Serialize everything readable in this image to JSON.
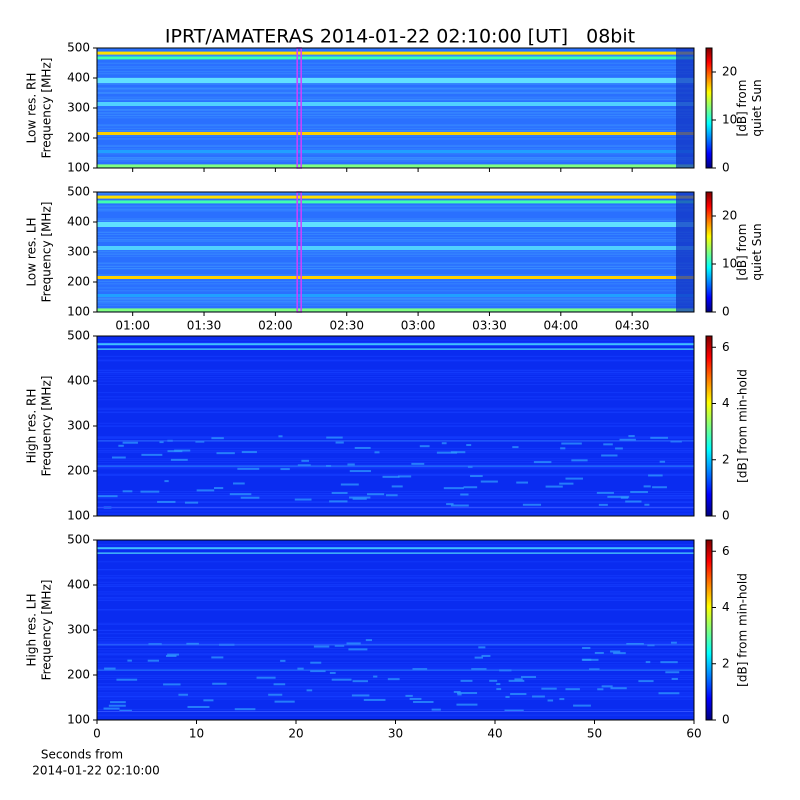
{
  "title": "IPRT/AMATERAS 2014-01-22 02:10:00 [UT]   08bit",
  "chart_data": [
    {
      "type": "spectrogram",
      "ylabel": [
        "Low res. RH",
        "Frequency [MHz]"
      ],
      "ylim": [
        100,
        500
      ],
      "yticks": [
        100,
        200,
        300,
        400,
        500
      ],
      "xlim": [
        "00:45",
        "04:56"
      ],
      "marker": "02:10",
      "colorbar": {
        "label": [
          "[dB] from",
          "quiet Sun"
        ],
        "lim": [
          0,
          25
        ],
        "ticks": [
          0,
          10,
          20
        ]
      }
    },
    {
      "type": "spectrogram",
      "ylabel": [
        "Low res. LH",
        "Frequency [MHz]"
      ],
      "ylim": [
        100,
        500
      ],
      "yticks": [
        100,
        200,
        300,
        400,
        500
      ],
      "xlim": [
        "00:45",
        "04:56"
      ],
      "xticks": [
        "01:00",
        "01:30",
        "02:00",
        "02:30",
        "03:00",
        "03:30",
        "04:00",
        "04:30"
      ],
      "marker": "02:10",
      "colorbar": {
        "label": [
          "[dB] from",
          "quiet Sun"
        ],
        "lim": [
          0,
          25
        ],
        "ticks": [
          0,
          10,
          20
        ]
      }
    },
    {
      "type": "spectrogram",
      "ylabel": [
        "High res. RH",
        "Frequency [MHz]"
      ],
      "ylim": [
        100,
        500
      ],
      "yticks": [
        100,
        200,
        300,
        400,
        500
      ],
      "xlim": [
        0,
        60
      ],
      "colorbar": {
        "label": [
          "[dB] from min-hold"
        ],
        "lim": [
          0,
          6.4
        ],
        "ticks": [
          0,
          2,
          4,
          6
        ]
      }
    },
    {
      "type": "spectrogram",
      "ylabel": [
        "High res. LH",
        "Frequency [MHz]"
      ],
      "ylim": [
        100,
        500
      ],
      "yticks": [
        100,
        200,
        300,
        400,
        500
      ],
      "xlim": [
        0,
        60
      ],
      "xticks": [
        0,
        10,
        20,
        30,
        40,
        50,
        60
      ],
      "xlabel": [
        "Seconds from",
        "2014-01-22 02:10:00"
      ],
      "colorbar": {
        "label": [
          "[dB] from min-hold"
        ],
        "lim": [
          0,
          6.4
        ],
        "ticks": [
          0,
          2,
          4,
          6
        ]
      }
    }
  ]
}
